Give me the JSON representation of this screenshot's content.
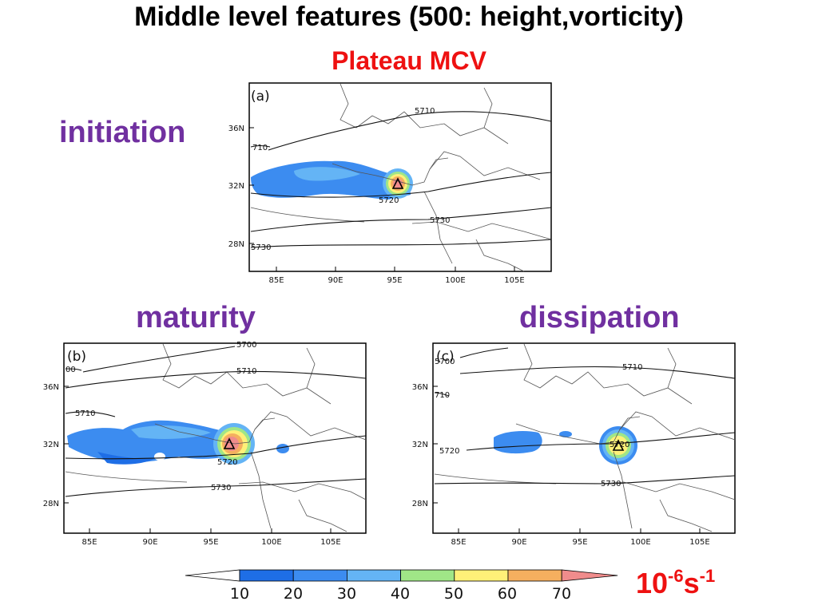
{
  "title": "Middle level features (500: height,vorticity)",
  "subtitle": "Plateau MCV",
  "stages": {
    "a": {
      "label": "initiation",
      "panel": "(a)"
    },
    "b": {
      "label": "maturity",
      "panel": "(b)"
    },
    "c": {
      "label": "dissipation",
      "panel": "(c)"
    }
  },
  "axes": {
    "lon_ticks": [
      "85E",
      "90E",
      "95E",
      "100E",
      "105E"
    ],
    "lat_ticks": [
      "36N",
      "32N",
      "28N"
    ]
  },
  "contours": {
    "a": [
      "5710",
      "710",
      "5720",
      "5730",
      "5730"
    ],
    "b": [
      "5700",
      "00",
      "5710",
      "5710",
      "5720",
      "5730"
    ],
    "c": [
      "5700",
      "5710",
      "710",
      "5720",
      "5720",
      "5730"
    ]
  },
  "colorbar": {
    "levels": [
      "10",
      "20",
      "30",
      "40",
      "50",
      "60",
      "70"
    ],
    "colors": [
      "#ffffff",
      "#1e6ee6",
      "#3c8cf0",
      "#64b4f5",
      "#a0e687",
      "#fff078",
      "#f5af5f",
      "#f08c8c"
    ]
  },
  "units": {
    "base": "10",
    "exp1": "-6",
    "s": "s",
    "exp2": "-1"
  },
  "colors": {
    "title": "#000000",
    "subtitle": "#ee1111",
    "stage": "#7030a0"
  }
}
